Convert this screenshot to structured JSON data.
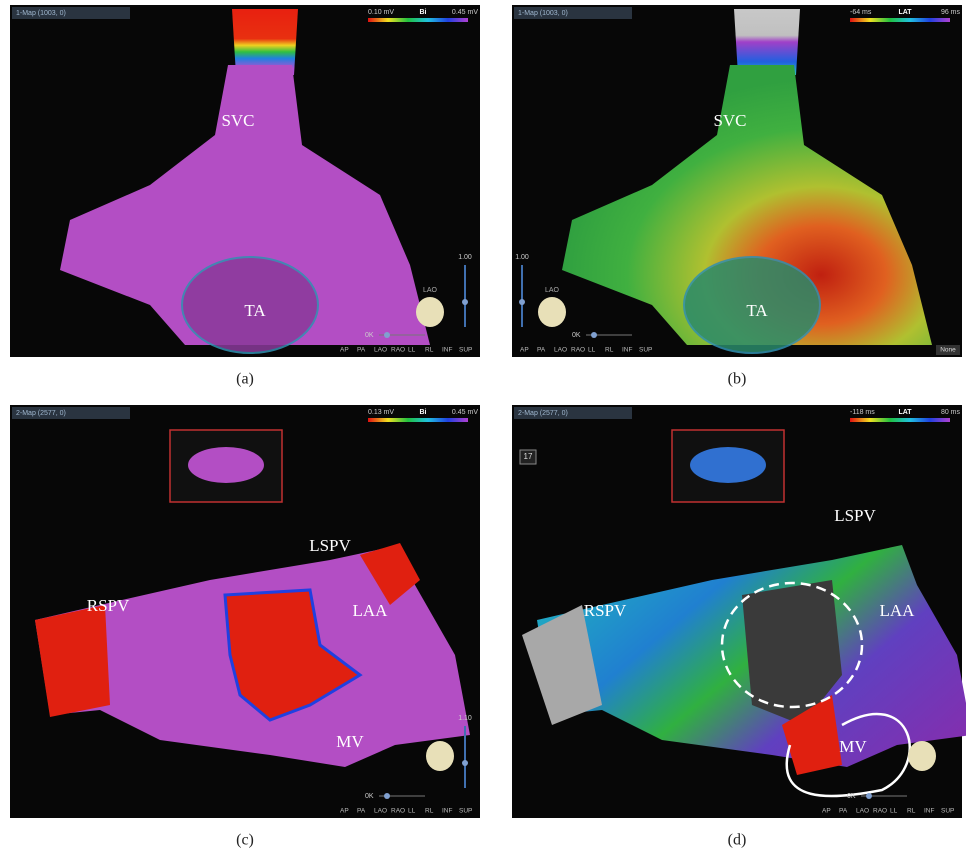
{
  "panels": [
    {
      "label": "(a)",
      "map_name": "1-Map (1003, 0)",
      "scale_min": "0.10 mV",
      "scale_name": "Bi",
      "scale_max": "0.45 mV",
      "anatomy": [
        "SVC",
        "TA"
      ],
      "view": "LAO",
      "zoom": "1.00",
      "ok": "0K",
      "views": [
        "AP",
        "PA",
        "LAO",
        "RAO",
        "LL",
        "RL",
        "INF",
        "SUP"
      ]
    },
    {
      "label": "(b)",
      "map_name": "1-Map (1003, 0)",
      "scale_min": "-64 ms",
      "scale_name": "LAT",
      "scale_max": "96 ms",
      "anatomy": [
        "SVC",
        "TA"
      ],
      "view": "LAO",
      "zoom": "1.00",
      "ok": "0K",
      "views": [
        "AP",
        "PA",
        "LAO",
        "RAO",
        "LL",
        "RL",
        "INF",
        "SUP"
      ],
      "status": "None"
    },
    {
      "label": "(c)",
      "map_name": "2-Map (2577, 0)",
      "scale_min": "0.13 mV",
      "scale_name": "Bi",
      "scale_max": "0.45 mV",
      "anatomy": [
        "RSPV",
        "LSPV",
        "LAA",
        "MV"
      ],
      "zoom": "1.10",
      "ok": "0K",
      "views": [
        "AP",
        "PA",
        "LAO",
        "RAO",
        "LL",
        "RL",
        "INF",
        "SUP"
      ]
    },
    {
      "label": "(d)",
      "map_name": "2-Map (2577, 0)",
      "scale_min": "-118 ms",
      "scale_name": "LAT",
      "scale_max": "80 ms",
      "anatomy": [
        "LSPV",
        "RSPV",
        "LAA",
        "MV"
      ],
      "ok": "0K",
      "views": [
        "AP",
        "PA",
        "LAO",
        "RAO",
        "LL",
        "RL",
        "INF",
        "SUP"
      ],
      "counter": "17"
    }
  ]
}
